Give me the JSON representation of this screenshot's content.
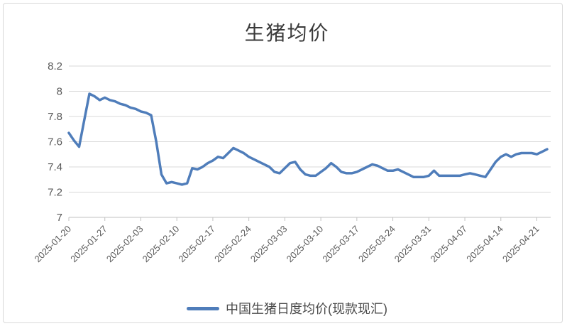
{
  "chart": {
    "title": "生猪均价",
    "legend_label": "中国生猪日度均价(现款现汇)"
  },
  "colors": {
    "line": "#4f7dba",
    "grid": "#d9d9d9",
    "axis": "#c2c2c2",
    "axis_text": "#595959",
    "title_text": "#3a3a3a"
  },
  "chart_data": {
    "type": "line",
    "title": "生猪均价",
    "xlabel": "",
    "ylabel": "",
    "ylim": [
      7,
      8.2
    ],
    "y_ticks": [
      "7",
      "7.2",
      "7.4",
      "7.6",
      "7.8",
      "8",
      "8.2"
    ],
    "x_tick_labels": [
      "2025-01-20",
      "2025-01-27",
      "2025-02-03",
      "2025-02-10",
      "2025-02-17",
      "2025-02-24",
      "2025-03-03",
      "2025-03-10",
      "2025-03-17",
      "2025-03-24",
      "2025-03-31",
      "2025-04-07",
      "2025-04-14",
      "2025-04-21"
    ],
    "grid": true,
    "legend_position": "bottom",
    "series": [
      {
        "name": "中国生猪日度均价(现款现汇)",
        "x": [
          "2025-01-20",
          "2025-01-21",
          "2025-01-22",
          "2025-01-23",
          "2025-01-24",
          "2025-01-25",
          "2025-01-26",
          "2025-01-27",
          "2025-01-28",
          "2025-01-29",
          "2025-01-30",
          "2025-01-31",
          "2025-02-01",
          "2025-02-02",
          "2025-02-03",
          "2025-02-04",
          "2025-02-05",
          "2025-02-06",
          "2025-02-07",
          "2025-02-08",
          "2025-02-09",
          "2025-02-10",
          "2025-02-11",
          "2025-02-12",
          "2025-02-13",
          "2025-02-14",
          "2025-02-15",
          "2025-02-16",
          "2025-02-17",
          "2025-02-18",
          "2025-02-19",
          "2025-02-20",
          "2025-02-21",
          "2025-02-22",
          "2025-02-23",
          "2025-02-24",
          "2025-02-25",
          "2025-02-26",
          "2025-02-27",
          "2025-02-28",
          "2025-03-01",
          "2025-03-02",
          "2025-03-03",
          "2025-03-04",
          "2025-03-05",
          "2025-03-06",
          "2025-03-07",
          "2025-03-08",
          "2025-03-09",
          "2025-03-10",
          "2025-03-11",
          "2025-03-12",
          "2025-03-13",
          "2025-03-14",
          "2025-03-15",
          "2025-03-16",
          "2025-03-17",
          "2025-03-18",
          "2025-03-19",
          "2025-03-20",
          "2025-03-21",
          "2025-03-22",
          "2025-03-23",
          "2025-03-24",
          "2025-03-25",
          "2025-03-26",
          "2025-03-27",
          "2025-03-28",
          "2025-03-29",
          "2025-03-30",
          "2025-03-31",
          "2025-04-01",
          "2025-04-02",
          "2025-04-03",
          "2025-04-04",
          "2025-04-05",
          "2025-04-06",
          "2025-04-07",
          "2025-04-08",
          "2025-04-09",
          "2025-04-10",
          "2025-04-11",
          "2025-04-12",
          "2025-04-13",
          "2025-04-14",
          "2025-04-15",
          "2025-04-16",
          "2025-04-17",
          "2025-04-18",
          "2025-04-19",
          "2025-04-20",
          "2025-04-21",
          "2025-04-22",
          "2025-04-23"
        ],
        "values": [
          7.67,
          7.61,
          7.56,
          7.77,
          7.98,
          7.96,
          7.93,
          7.95,
          7.93,
          7.92,
          7.9,
          7.89,
          7.87,
          7.86,
          7.84,
          7.83,
          7.81,
          7.6,
          7.34,
          7.27,
          7.28,
          7.27,
          7.26,
          7.27,
          7.39,
          7.38,
          7.4,
          7.43,
          7.45,
          7.48,
          7.47,
          7.51,
          7.55,
          7.53,
          7.51,
          7.48,
          7.46,
          7.44,
          7.42,
          7.4,
          7.36,
          7.35,
          7.39,
          7.43,
          7.44,
          7.38,
          7.34,
          7.33,
          7.33,
          7.36,
          7.39,
          7.43,
          7.4,
          7.36,
          7.35,
          7.35,
          7.36,
          7.38,
          7.4,
          7.42,
          7.41,
          7.39,
          7.37,
          7.37,
          7.38,
          7.36,
          7.34,
          7.32,
          7.32,
          7.32,
          7.33,
          7.37,
          7.33,
          7.33,
          7.33,
          7.33,
          7.33,
          7.34,
          7.35,
          7.34,
          7.33,
          7.32,
          7.38,
          7.44,
          7.48,
          7.5,
          7.48,
          7.5,
          7.51,
          7.51,
          7.51,
          7.5,
          7.52,
          7.54
        ]
      }
    ]
  }
}
